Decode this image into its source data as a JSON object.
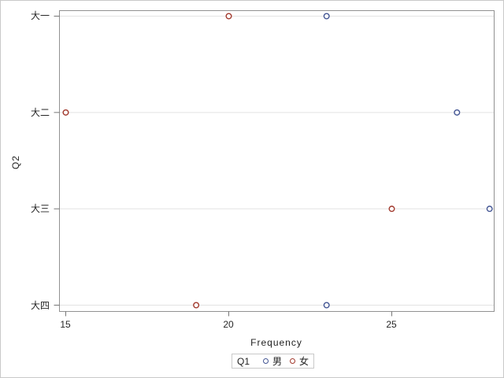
{
  "figure": {
    "background": "#ffffff",
    "outer_border_color": "#c9c9c9"
  },
  "chart_data": {
    "type": "scatter",
    "title": "",
    "xlabel": "Frequency",
    "ylabel": "Q2",
    "categories": [
      "大一",
      "大二",
      "大三",
      "大四"
    ],
    "xticks": [
      15,
      20,
      25
    ],
    "xlim": [
      14.8,
      28.2
    ],
    "grid": "horizontal-category-lines",
    "marker": "circle-open",
    "legend": {
      "title": "Q1",
      "position": "bottom-center",
      "entries": [
        {
          "label": "男",
          "color": "#445694"
        },
        {
          "label": "女",
          "color": "#A23A2E"
        }
      ]
    },
    "series": [
      {
        "name": "男",
        "color": "#445694",
        "values": [
          23,
          27,
          28,
          23
        ]
      },
      {
        "name": "女",
        "color": "#A23A2E",
        "values": [
          20,
          15,
          25,
          19
        ]
      }
    ],
    "style_colors": {
      "gridline": "#e3e3e3",
      "wall_border": "#919191",
      "tick": "#767676",
      "text": "#1f1f1f"
    }
  }
}
